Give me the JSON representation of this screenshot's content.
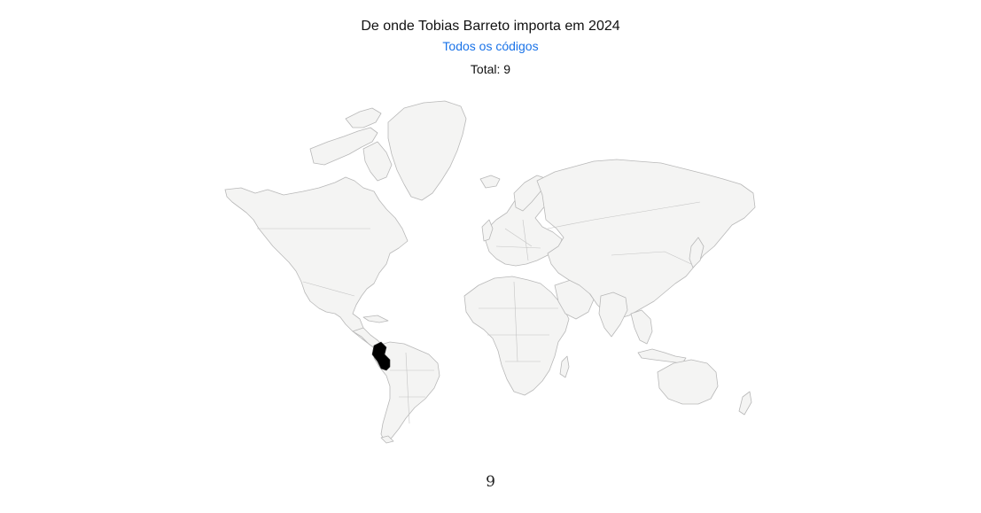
{
  "header": {
    "title": "De onde Tobias Barreto importa em 2024",
    "link_label": "Todos os códigos",
    "total_label": "Total: 9"
  },
  "map": {
    "highlighted_country": "Peru",
    "highlight_color": "#000000",
    "base_color": "#f4f4f3",
    "border_color": "#b8b8b8"
  },
  "legend": {
    "value": "9"
  },
  "colors": {
    "link": "#1a73e8",
    "text": "#111111"
  }
}
